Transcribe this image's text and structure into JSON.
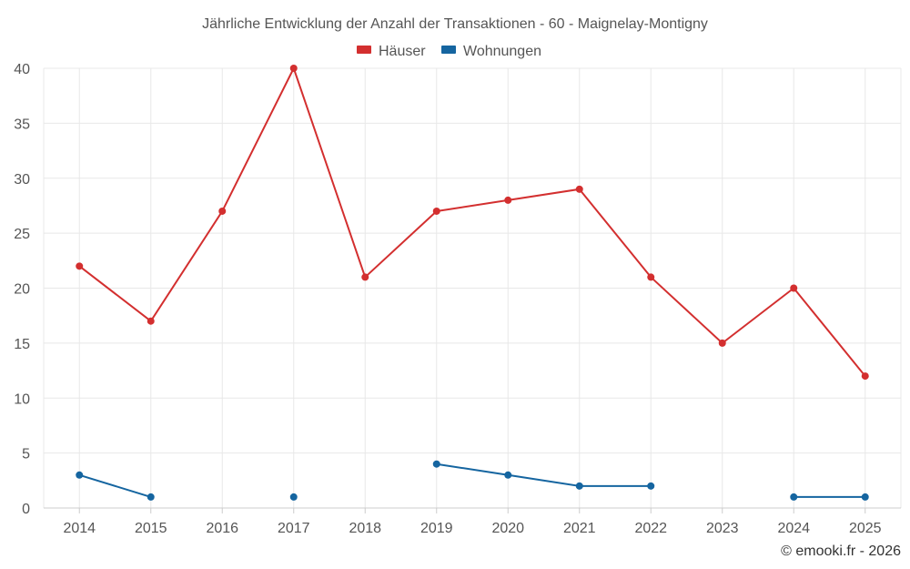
{
  "chart_data": {
    "type": "line",
    "title": "Jährliche Entwicklung der Anzahl der Transaktionen - 60 - Maignelay-Montigny",
    "categories": [
      "2014",
      "2015",
      "2016",
      "2017",
      "2018",
      "2019",
      "2020",
      "2021",
      "2022",
      "2023",
      "2024",
      "2025"
    ],
    "y_ticks": [
      0,
      5,
      10,
      15,
      20,
      25,
      30,
      35,
      40
    ],
    "ylim": [
      0,
      40
    ],
    "grid": true,
    "legend_position": "top-center",
    "series": [
      {
        "name": "Häuser",
        "color": "#d32f2f",
        "values": [
          22,
          17,
          27,
          40,
          21,
          27,
          28,
          29,
          21,
          15,
          20,
          12
        ]
      },
      {
        "name": "Wohnungen",
        "color": "#1565a0",
        "values": [
          3,
          1,
          null,
          1,
          null,
          4,
          3,
          2,
          2,
          null,
          1,
          1
        ]
      }
    ]
  },
  "credit": "© emooki.fr - 2026"
}
